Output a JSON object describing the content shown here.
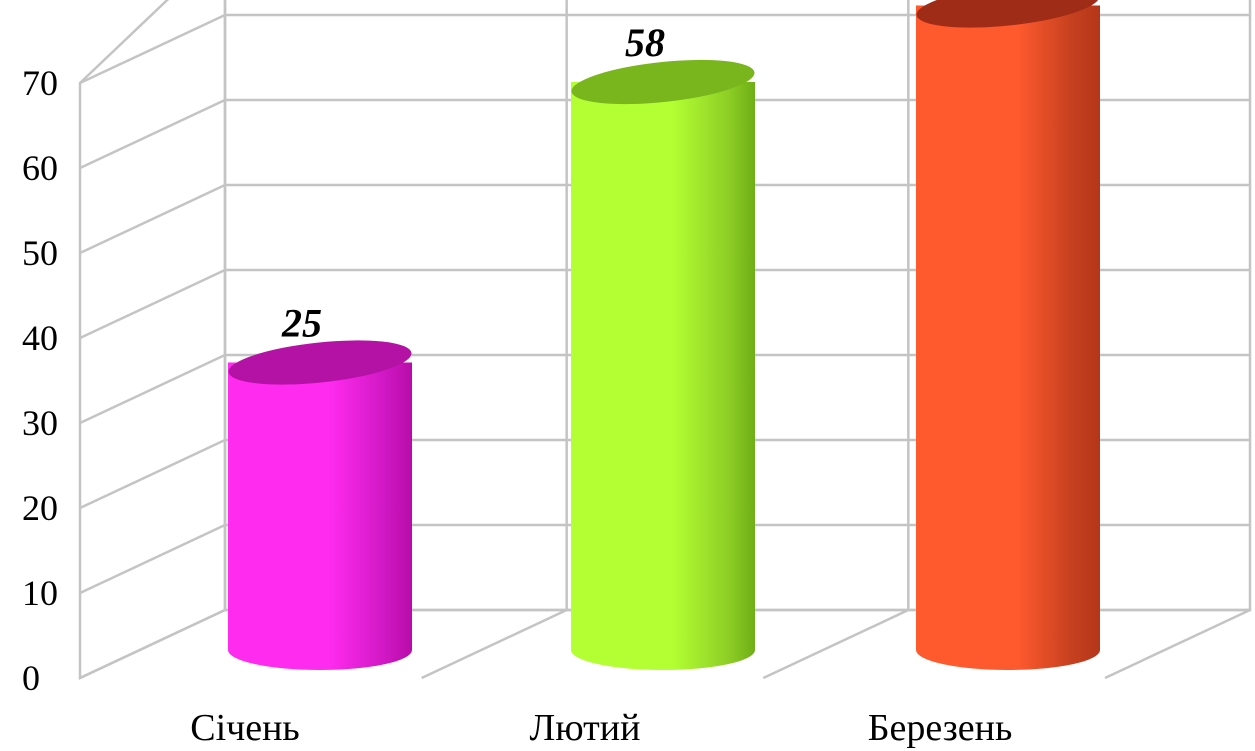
{
  "chart_data": {
    "type": "bar",
    "style": "3d-cylinder",
    "categories": [
      "Січень",
      "Лютий",
      "Березень"
    ],
    "values": [
      25,
      58,
      67
    ],
    "ylim": [
      0,
      70
    ],
    "yticks": [
      0,
      10,
      20,
      30,
      40,
      50,
      60,
      70
    ],
    "grid": true,
    "legend": "none",
    "colors": [
      {
        "front": "#ff2bef",
        "side": "#b80ca8",
        "top": "#b412a4",
        "rim": "#d018c4"
      },
      {
        "front": "#b3ff33",
        "side": "#6fae16",
        "top": "#79b51c",
        "rim": "#8fcf26"
      },
      {
        "front": "#ff5a2e",
        "side": "#b5361a",
        "top": "#9f2c17",
        "rim": "#c5401f"
      }
    ]
  }
}
